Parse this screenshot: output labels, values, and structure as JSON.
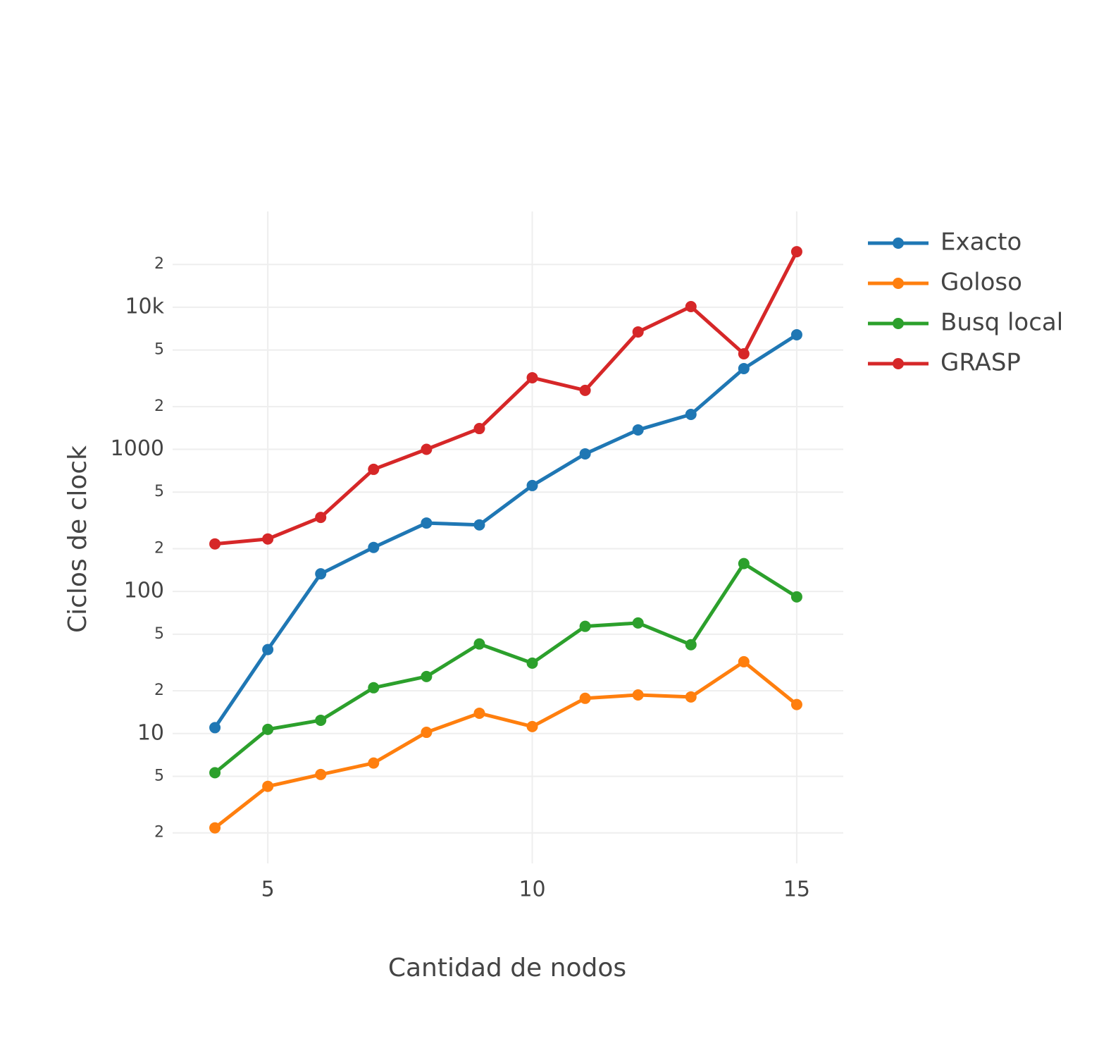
{
  "chart_data": {
    "type": "line",
    "x_label": "Cantidad de nodos",
    "y_label": "Ciclos de clock",
    "x": [
      4,
      5,
      6,
      7,
      8,
      9,
      10,
      11,
      12,
      13,
      14,
      15
    ],
    "series": [
      {
        "name": "Exacto",
        "color": "#1f77b4",
        "values": [
          11,
          39,
          133,
          204,
          303,
          294,
          556,
          929,
          1370,
          1760,
          3700,
          6400
        ]
      },
      {
        "name": "Goloso",
        "color": "#ff7f0e",
        "values": [
          2.17,
          4.25,
          5.15,
          6.2,
          10.2,
          13.9,
          11.2,
          17.7,
          18.7,
          18.1,
          32,
          16
        ]
      },
      {
        "name": "Busq local",
        "color": "#2ca02c",
        "values": [
          5.3,
          10.7,
          12.4,
          21,
          25.2,
          42.7,
          31.3,
          56.8,
          60,
          42.2,
          157,
          91.6
        ]
      },
      {
        "name": "GRASP",
        "color": "#d62728",
        "values": [
          216,
          234,
          332,
          723,
          1000,
          1400,
          3190,
          2600,
          6700,
          10100,
          4700,
          24600
        ]
      }
    ],
    "xlim": [
      3.2,
      15.88
    ],
    "xticks": [
      5,
      10,
      15
    ],
    "ylim": [
      1.22,
      47200
    ],
    "yticks": [
      2,
      5,
      10,
      {
        "value": 20,
        "label": "2"
      },
      {
        "value": 50,
        "label": "5"
      },
      100,
      {
        "value": 200,
        "label": "2"
      },
      {
        "value": 500,
        "label": "5"
      },
      1000,
      {
        "value": 2000,
        "label": "2"
      },
      {
        "value": 5000,
        "label": "5"
      },
      {
        "value": 10000,
        "label": "10k"
      },
      {
        "value": 20000,
        "label": "2"
      }
    ],
    "ylog": true,
    "grid": true,
    "legend": "right"
  }
}
